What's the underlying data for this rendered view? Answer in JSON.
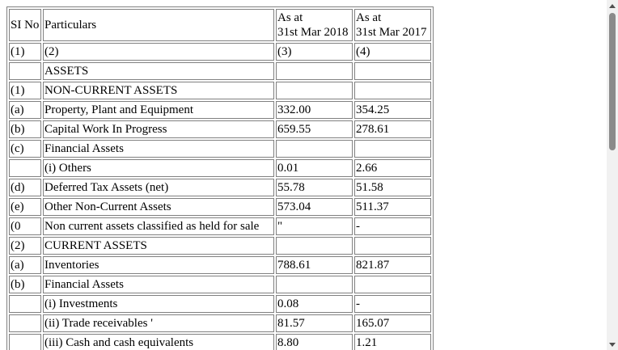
{
  "table": {
    "header": {
      "sl": "SI No",
      "particulars": "Particulars",
      "col2018_line1": "As at",
      "col2018_line2": "31st Mar 2018",
      "col2017_line1": "As at",
      "col2017_line2": "31st Mar 2017"
    },
    "rows": [
      {
        "sl": "(1)",
        "particulars": "(2)",
        "v2018": "(3)",
        "v2017": "(4)"
      },
      {
        "sl": "",
        "particulars": "ASSETS",
        "v2018": "",
        "v2017": ""
      },
      {
        "sl": "(1)",
        "particulars": "NON-CURRENT ASSETS",
        "v2018": "",
        "v2017": ""
      },
      {
        "sl": "(a)",
        "particulars": "Property, Plant and Equipment",
        "v2018": "332.00",
        "v2017": "354.25"
      },
      {
        "sl": "(b)",
        "particulars": "Capital Work In Progress",
        "v2018": "659.55",
        "v2017": "278.61"
      },
      {
        "sl": "(c)",
        "particulars": "Financial Assets",
        "v2018": "",
        "v2017": ""
      },
      {
        "sl": "",
        "particulars": "(i) Others",
        "v2018": "0.01",
        "v2017": "2.66"
      },
      {
        "sl": "(d)",
        "particulars": "Deferred Tax Assets (net)",
        "v2018": "55.78",
        "v2017": "51.58"
      },
      {
        "sl": "(e)",
        "particulars": "Other Non-Current Assets",
        "v2018": "573.04",
        "v2017": "511.37"
      },
      {
        "sl": "(0",
        "particulars": "Non current assets classified as held for sale",
        "v2018": "\"",
        "v2017": "-"
      },
      {
        "sl": "(2)",
        "particulars": "CURRENT ASSETS",
        "v2018": "",
        "v2017": ""
      },
      {
        "sl": "(a)",
        "particulars": "Inventories",
        "v2018": "788.61",
        "v2017": "821.87"
      },
      {
        "sl": "(b)",
        "particulars": "Financial Assets",
        "v2018": "",
        "v2017": ""
      },
      {
        "sl": "",
        "particulars": "(i) Investments",
        "v2018": "0.08",
        "v2017": "-"
      },
      {
        "sl": "",
        "particulars": "(ii) Trade receivables '",
        "v2018": "81.57",
        "v2017": "165.07"
      },
      {
        "sl": "",
        "particulars": "(iii) Cash and cash equivalents",
        "v2018": "8.80",
        "v2017": "1.21"
      }
    ]
  },
  "scrollbar": {
    "up_icon": "scroll-up-arrow-icon",
    "down_icon": "scroll-down-arrow-icon"
  }
}
